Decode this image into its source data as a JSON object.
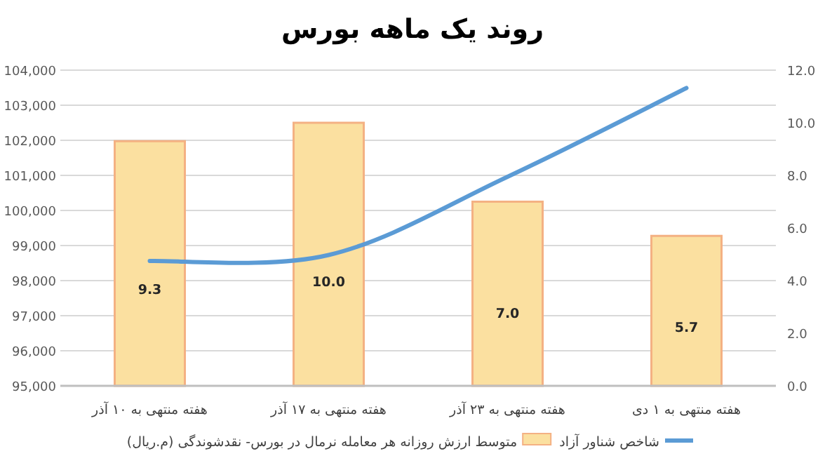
{
  "chart_data": {
    "type": "bar",
    "title": "روند یک ماهه بورس",
    "categories": [
      "هفته منتهی به ۱۰ آذر",
      "هفته منتهی به ۱۷ آذر",
      "هفته منتهی به ۲۳ آذر",
      "هفته منتهی به ۱ دی"
    ],
    "series": [
      {
        "name": "شاخص شناور آزاد",
        "type": "line",
        "axis": "y",
        "color": "#5b9bd5",
        "values": [
          98560,
          98730,
          100960,
          103490
        ]
      },
      {
        "name": "متوسط ارزش روزانه هر معامله نرمال در بورس- نقدشوندگی (م.ریال)",
        "axis": "y2",
        "color": "#fbe0a0",
        "values": [
          9.3,
          10.0,
          7.0,
          5.7
        ],
        "value_labels": [
          "9.3",
          "10.0",
          "7.0",
          "5.7"
        ]
      }
    ],
    "ylim": [
      95000,
      104000
    ],
    "yticks": [
      {
        "value": 95000,
        "label": "95,000"
      },
      {
        "value": 96000,
        "label": "96,000"
      },
      {
        "value": 97000,
        "label": "97,000"
      },
      {
        "value": 98000,
        "label": "98,000"
      },
      {
        "value": 99000,
        "label": "99,000"
      },
      {
        "value": 100000,
        "label": "100,000"
      },
      {
        "value": 101000,
        "label": "101,000"
      },
      {
        "value": 102000,
        "label": "102,000"
      },
      {
        "value": 103000,
        "label": "103,000"
      },
      {
        "value": 104000,
        "label": "104,000"
      }
    ],
    "y2lim": [
      0,
      12
    ],
    "y2ticks": [
      {
        "value": 0,
        "label": "0.0"
      },
      {
        "value": 2,
        "label": "2.0"
      },
      {
        "value": 4,
        "label": "4.0"
      },
      {
        "value": 6,
        "label": "6.0"
      },
      {
        "value": 8,
        "label": "8.0"
      },
      {
        "value": 10,
        "label": "10.0"
      },
      {
        "value": 12,
        "label": "12.0"
      }
    ],
    "grid": "y",
    "legend": "bottom",
    "line_style": "solid",
    "marker": "none"
  }
}
